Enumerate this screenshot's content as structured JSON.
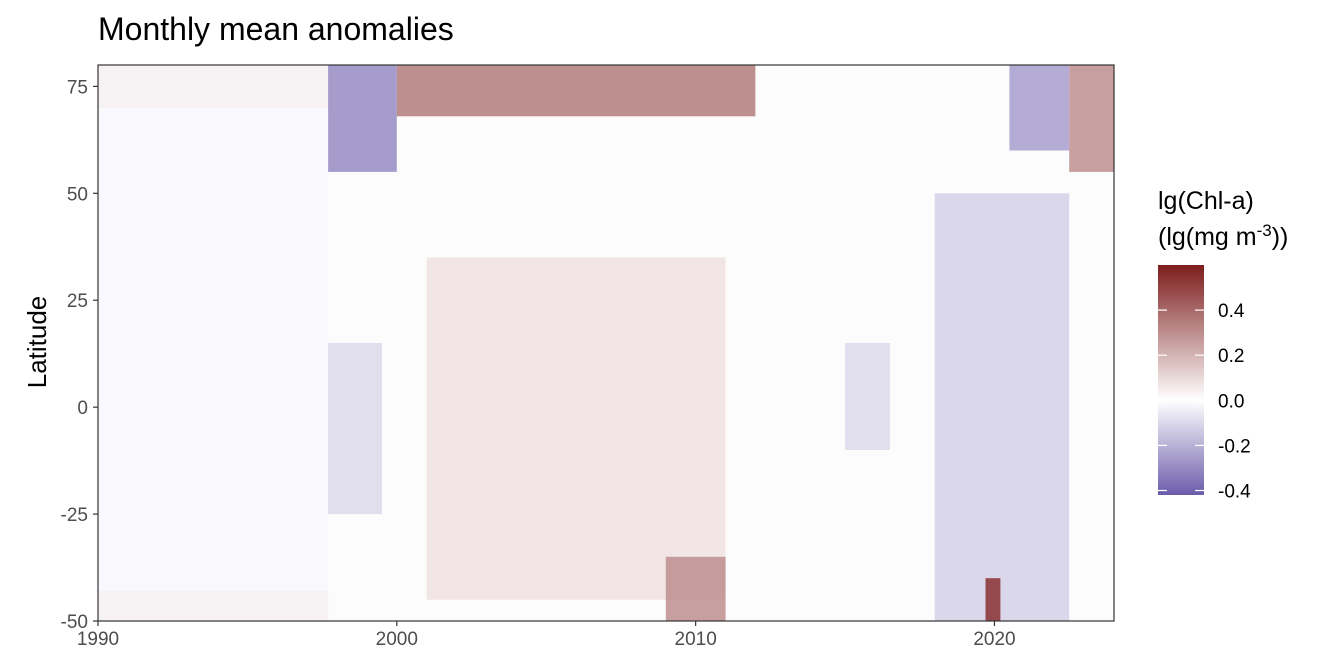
{
  "chart_data": {
    "type": "heatmap",
    "title": "Monthly mean anomalies",
    "xlabel": "",
    "ylabel": "Latitude",
    "xlim": [
      1990,
      2024
    ],
    "ylim": [
      -50,
      80
    ],
    "x_ticks": [
      1990,
      2000,
      2010,
      2020
    ],
    "y_ticks": [
      -50,
      -25,
      0,
      25,
      50,
      75
    ],
    "x_tick_labels": [
      "1990",
      "2000",
      "2010",
      "2020"
    ],
    "y_tick_labels": [
      "-50",
      "-25",
      "0",
      "25",
      "50",
      "75"
    ],
    "grid": false,
    "legend": {
      "position": "right",
      "title_line1": "lg(Chl-a)",
      "title_line2_prefix": "(lg(mg m",
      "title_line2_sup": "-3",
      "title_line2_suffix": "))",
      "range": [
        -0.42,
        0.6
      ],
      "ticks": [
        -0.4,
        -0.2,
        0.0,
        0.2,
        0.4
      ],
      "tick_labels": [
        "-0.4",
        "-0.2",
        "0.0",
        "0.2",
        "0.4"
      ],
      "colors": {
        "low": "#6b5cab",
        "mid": "#ffffff",
        "high": "#7d1d1d"
      }
    },
    "features": [
      {
        "name": "pre-1997 climatology period",
        "x": [
          1990,
          1997.7
        ],
        "y": [
          -50,
          80
        ],
        "value": -0.02
      },
      {
        "name": "pre-1997 high-latitude band",
        "x": [
          1990,
          1997.7
        ],
        "y": [
          70,
          80
        ],
        "value": 0.04
      },
      {
        "name": "pre-1997 southern band",
        "x": [
          1990,
          1997.7
        ],
        "y": [
          -50,
          -43
        ],
        "value": 0.04
      },
      {
        "name": "1998-1999 north negative",
        "x": [
          1997.7,
          2000
        ],
        "y": [
          55,
          80
        ],
        "value": -0.3
      },
      {
        "name": "1998 equatorial negative",
        "x": [
          1997.7,
          1999.5
        ],
        "y": [
          -25,
          15
        ],
        "value": -0.1
      },
      {
        "name": "2000s north positive",
        "x": [
          2000,
          2012
        ],
        "y": [
          68,
          80
        ],
        "value": 0.35
      },
      {
        "name": "2000s mid-latitude positive",
        "x": [
          2001,
          2011
        ],
        "y": [
          -45,
          35
        ],
        "value": 0.08
      },
      {
        "name": "2010 south positive",
        "x": [
          2009,
          2011
        ],
        "y": [
          -50,
          -35
        ],
        "value": 0.3
      },
      {
        "name": "2015-2016 equatorial negative",
        "x": [
          2015,
          2016.5
        ],
        "y": [
          -10,
          15
        ],
        "value": -0.1
      },
      {
        "name": "2019-2022 negative",
        "x": [
          2018,
          2022.5
        ],
        "y": [
          -50,
          50
        ],
        "value": -0.12
      },
      {
        "name": "2019.9 south hotspot",
        "x": [
          2019.7,
          2020.2
        ],
        "y": [
          -50,
          -40
        ],
        "value": 0.55
      },
      {
        "name": "2021-2022 north negative",
        "x": [
          2020.5,
          2022.5
        ],
        "y": [
          60,
          80
        ],
        "value": -0.25
      },
      {
        "name": "2023 north positive",
        "x": [
          2022.5,
          2024
        ],
        "y": [
          55,
          80
        ],
        "value": 0.3
      }
    ]
  }
}
